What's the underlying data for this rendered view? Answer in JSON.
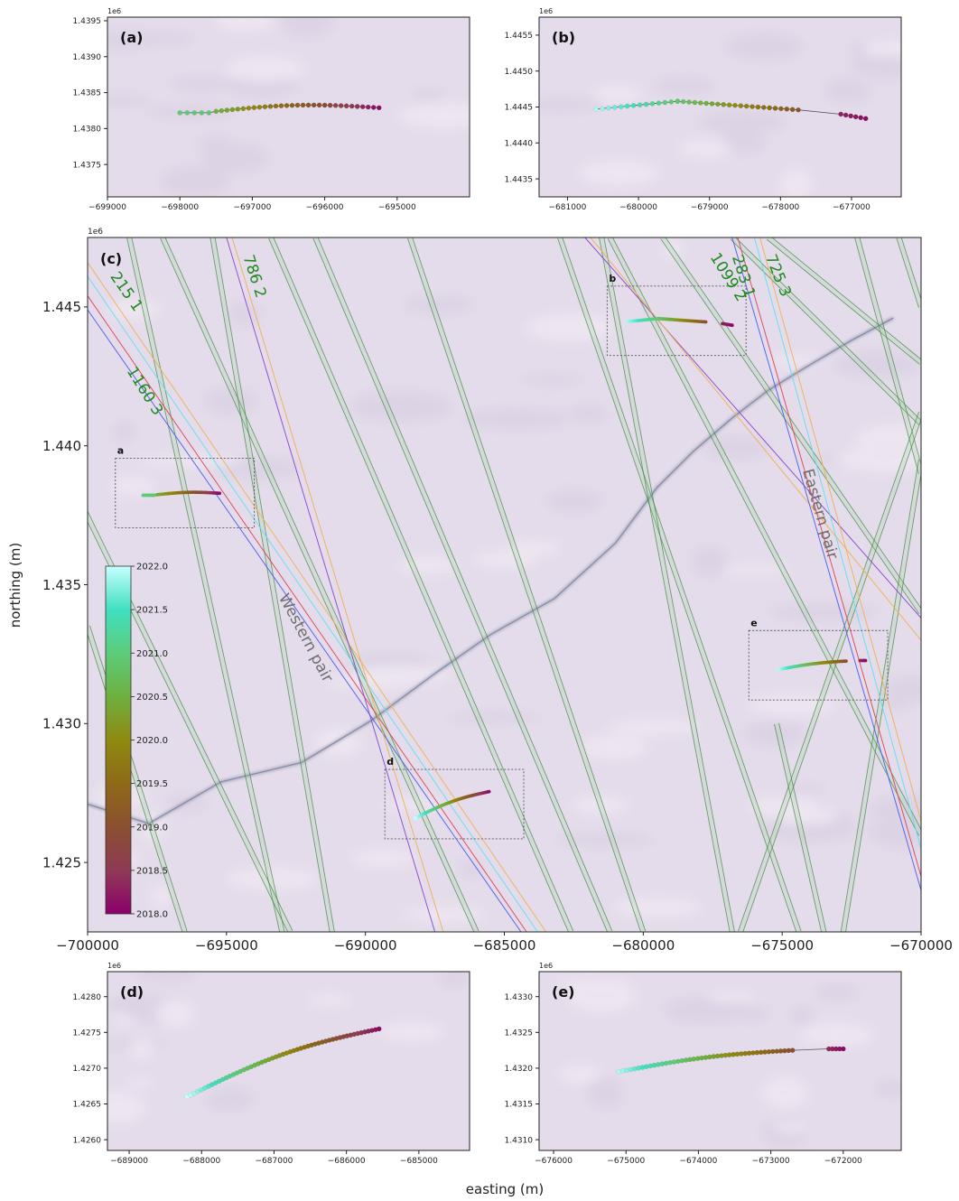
{
  "figure": {
    "xlabel": "easting (m)",
    "ylabel": "northing (m)",
    "colors": {
      "background": "#e4dcea",
      "track_green": "#3a8a3a",
      "track_blue": "#4a5af0",
      "track_red": "#e04050",
      "track_cyan": "#60e0f0",
      "track_orange": "#f0b050",
      "track_purple": "#8844cc",
      "box": "#555555"
    }
  },
  "chart_data": [
    {
      "id": "a",
      "type": "scatter",
      "label": "(a)",
      "offset_text": "1e6",
      "xlim": [
        -699000,
        -694000
      ],
      "ylim": [
        1.43705,
        1.43955
      ],
      "xticks": [
        -699000,
        -698000,
        -697000,
        -696000,
        -695000
      ],
      "xtick_labels": [
        "−699000",
        "−698000",
        "−697000",
        "−696000",
        "−695000"
      ],
      "yticks": [
        1.4375,
        1.438,
        1.4385,
        1.439,
        1.4395
      ],
      "ytick_labels": [
        "1.4375",
        "1.4380",
        "1.4385",
        "1.4390",
        "1.4395"
      ],
      "segments": [
        {
          "x0": -698000,
          "y0": 1.43822,
          "x1": -697600,
          "y1": 1.43822,
          "t0": 2021.0,
          "t1": 2020.9,
          "n": 5
        },
        {
          "x0": -697500,
          "y0": 1.43824,
          "x1": -695250,
          "y1": 1.43829,
          "t0": 2020.5,
          "t1": 2018.1,
          "n": 31,
          "curve": 6e-05
        }
      ]
    },
    {
      "id": "b",
      "type": "scatter",
      "label": "(b)",
      "offset_text": "1e6",
      "xlim": [
        -681400,
        -676300
      ],
      "ylim": [
        1.44325,
        1.44575
      ],
      "xticks": [
        -681000,
        -680000,
        -679000,
        -678000,
        -677000
      ],
      "xtick_labels": [
        "−681000",
        "−680000",
        "−679000",
        "−678000",
        "−677000"
      ],
      "yticks": [
        1.4435,
        1.444,
        1.4445,
        1.445,
        1.4455
      ],
      "ytick_labels": [
        "1.4435",
        "1.4440",
        "1.4445",
        "1.4450",
        "1.4455"
      ],
      "segments": [
        {
          "x0": -680600,
          "y0": 1.44447,
          "x1": -679450,
          "y1": 1.44458,
          "t0": 2021.9,
          "t1": 2020.9,
          "n": 14
        },
        {
          "x0": -679450,
          "y0": 1.44458,
          "x1": -677750,
          "y1": 1.44446,
          "t0": 2020.9,
          "t1": 2019.1,
          "n": 22
        },
        {
          "x0": -677150,
          "y0": 1.4444,
          "x1": -676800,
          "y1": 1.44434,
          "t0": 2018.3,
          "t1": 2018.1,
          "n": 6
        }
      ]
    },
    {
      "id": "c",
      "type": "map",
      "label": "(c)",
      "offset_text": "1e6",
      "xlim": [
        -700000,
        -670000
      ],
      "ylim": [
        1.4225,
        1.4475
      ],
      "xticks": [
        -700000,
        -695000,
        -690000,
        -685000,
        -680000,
        -675000,
        -670000
      ],
      "xtick_labels": [
        "−700000",
        "−695000",
        "−690000",
        "−685000",
        "−680000",
        "−675000",
        "−670000"
      ],
      "yticks": [
        1.425,
        1.43,
        1.435,
        1.44,
        1.445
      ],
      "ytick_labels": [
        "1.425",
        "1.430",
        "1.435",
        "1.440",
        "1.445"
      ],
      "track_labels": [
        {
          "text": "215 1",
          "x": -699200,
          "y": 1.4461,
          "angle": 55
        },
        {
          "text": "1160 3",
          "x": -698600,
          "y": 1.4427,
          "angle": 58
        },
        {
          "text": "786 2",
          "x": -694400,
          "y": 1.4468,
          "angle": 72
        },
        {
          "text": "1099 2",
          "x": -677600,
          "y": 1.4468,
          "angle": 58
        },
        {
          "text": "283 1",
          "x": -676800,
          "y": 1.4468,
          "angle": 72
        },
        {
          "text": "725 3",
          "x": -675600,
          "y": 1.4468,
          "angle": 68
        }
      ],
      "pair_labels": [
        {
          "text": "Western pair",
          "x": -692300,
          "y": 1.433,
          "angle": 62
        },
        {
          "text": "Eastern pair",
          "x": -673800,
          "y": 1.4375,
          "angle": 74
        }
      ],
      "boxes": [
        {
          "label": "a",
          "x0": -699000,
          "x1": -694000,
          "y0": 1.43705,
          "y1": 1.43955
        },
        {
          "label": "b",
          "x0": -681300,
          "x1": -676300,
          "y0": 1.44325,
          "y1": 1.44575
        },
        {
          "label": "d",
          "x0": -689300,
          "x1": -684300,
          "y0": 1.42585,
          "y1": 1.42835
        },
        {
          "label": "e",
          "x0": -676200,
          "x1": -671200,
          "y0": 1.43085,
          "y1": 1.43335
        }
      ],
      "tracks": [
        {
          "x1": -698500,
          "y1": 1.4475,
          "x2": -693000,
          "y2": 1.4225,
          "color": "green"
        },
        {
          "x1": -701000,
          "y1": 1.4395,
          "x2": -692700,
          "y2": 1.4225,
          "color": "green"
        },
        {
          "x1": -700000,
          "y1": 1.4335,
          "x2": -696500,
          "y2": 1.4225,
          "color": "green"
        },
        {
          "x1": -697300,
          "y1": 1.4475,
          "x2": -686000,
          "y2": 1.4225,
          "color": "green"
        },
        {
          "x1": -695500,
          "y1": 1.4475,
          "x2": -691200,
          "y2": 1.4225,
          "color": "green"
        },
        {
          "x1": -691800,
          "y1": 1.4475,
          "x2": -681200,
          "y2": 1.4225,
          "color": "green"
        },
        {
          "x1": -693400,
          "y1": 1.4475,
          "x2": -682600,
          "y2": 1.4225,
          "color": "green"
        },
        {
          "x1": -688400,
          "y1": 1.4475,
          "x2": -680000,
          "y2": 1.4225,
          "color": "green"
        },
        {
          "x1": -683000,
          "y1": 1.4475,
          "x2": -674400,
          "y2": 1.4225,
          "color": "green"
        },
        {
          "x1": -681500,
          "y1": 1.4475,
          "x2": -676800,
          "y2": 1.4225,
          "color": "green"
        },
        {
          "x1": -681200,
          "y1": 1.4475,
          "x2": -670000,
          "y2": 1.426,
          "color": "green"
        },
        {
          "x1": -679300,
          "y1": 1.4475,
          "x2": -670000,
          "y2": 1.434,
          "color": "green"
        },
        {
          "x1": -676800,
          "y1": 1.4475,
          "x2": -670000,
          "y2": 1.4408,
          "color": "green"
        },
        {
          "x1": -675500,
          "y1": 1.4475,
          "x2": -670000,
          "y2": 1.443,
          "color": "green"
        },
        {
          "x1": -672300,
          "y1": 1.4475,
          "x2": -670000,
          "y2": 1.439,
          "color": "green"
        },
        {
          "x1": -670800,
          "y1": 1.4475,
          "x2": -670000,
          "y2": 1.445,
          "color": "green"
        },
        {
          "x1": -670000,
          "y1": 1.4412,
          "x2": -676500,
          "y2": 1.4225,
          "color": "green"
        },
        {
          "x1": -670000,
          "y1": 1.4395,
          "x2": -672800,
          "y2": 1.4225,
          "color": "green"
        },
        {
          "x1": -675200,
          "y1": 1.43,
          "x2": -673500,
          "y2": 1.4225,
          "color": "green"
        },
        {
          "x1": -700000,
          "y1": 1.4449,
          "x2": -684400,
          "y2": 1.4225,
          "color": "blue"
        },
        {
          "x1": -700000,
          "y1": 1.4454,
          "x2": -684200,
          "y2": 1.4225,
          "color": "red"
        },
        {
          "x1": -700000,
          "y1": 1.4461,
          "x2": -683800,
          "y2": 1.4225,
          "color": "cyan"
        },
        {
          "x1": -700000,
          "y1": 1.4466,
          "x2": -683500,
          "y2": 1.4225,
          "color": "orange"
        },
        {
          "x1": -695000,
          "y1": 1.4475,
          "x2": -687500,
          "y2": 1.4225,
          "color": "purple"
        },
        {
          "x1": -694800,
          "y1": 1.4475,
          "x2": -687200,
          "y2": 1.4225,
          "color": "orange"
        },
        {
          "x1": -682100,
          "y1": 1.4475,
          "x2": -670000,
          "y2": 1.4338,
          "color": "purple"
        },
        {
          "x1": -681900,
          "y1": 1.4475,
          "x2": -670000,
          "y2": 1.433,
          "color": "orange"
        },
        {
          "x1": -676800,
          "y1": 1.4475,
          "x2": -670000,
          "y2": 1.424,
          "color": "blue"
        },
        {
          "x1": -676600,
          "y1": 1.4475,
          "x2": -670000,
          "y2": 1.4245,
          "color": "red"
        },
        {
          "x1": -676000,
          "y1": 1.4475,
          "x2": -670000,
          "y2": 1.4255,
          "color": "cyan"
        },
        {
          "x1": -675800,
          "y1": 1.4475,
          "x2": -670000,
          "y2": 1.4265,
          "color": "orange"
        }
      ],
      "segments": [
        {
          "x0": -698000,
          "y0": 1.43822,
          "x1": -697600,
          "y1": 1.43822,
          "t0": 2021.0,
          "t1": 2020.9,
          "n": 8
        },
        {
          "x0": -697500,
          "y0": 1.43824,
          "x1": -695250,
          "y1": 1.43829,
          "t0": 2020.5,
          "t1": 2018.1,
          "n": 40,
          "curve": 6e-05
        },
        {
          "x0": -680600,
          "y0": 1.44447,
          "x1": -679450,
          "y1": 1.44458,
          "t0": 2021.9,
          "t1": 2020.9,
          "n": 20
        },
        {
          "x0": -679450,
          "y0": 1.44458,
          "x1": -677750,
          "y1": 1.44446,
          "t0": 2020.9,
          "t1": 2019.1,
          "n": 30
        },
        {
          "x0": -677150,
          "y0": 1.4444,
          "x1": -676800,
          "y1": 1.44434,
          "t0": 2018.3,
          "t1": 2018.1,
          "n": 8
        },
        {
          "x0": -688200,
          "y0": 1.4266,
          "x1": -685550,
          "y1": 1.42755,
          "t0": 2022.0,
          "t1": 2018.1,
          "n": 50,
          "curve": 0.00012
        },
        {
          "x0": -675100,
          "y0": 1.43195,
          "x1": -672700,
          "y1": 1.43225,
          "t0": 2021.9,
          "t1": 2019.0,
          "n": 40,
          "curve": 5e-05
        },
        {
          "x0": -672200,
          "y0": 1.43227,
          "x1": -672000,
          "y1": 1.43227,
          "t0": 2018.4,
          "t1": 2018.1,
          "n": 5
        }
      ],
      "colorbar": {
        "min": 2018.0,
        "max": 2022.0,
        "ticks": [
          2018.0,
          2018.5,
          2019.0,
          2019.5,
          2020.0,
          2020.5,
          2021.0,
          2021.5,
          2022.0
        ],
        "tick_labels": [
          "2018.0",
          "2018.5",
          "2019.0",
          "2019.5",
          "2020.0",
          "2020.5",
          "2021.0",
          "2021.5",
          "2022.0"
        ],
        "colormap": [
          "#8b006b",
          "#8f3a55",
          "#8a5030",
          "#8e6a18",
          "#8f8a10",
          "#6fb040",
          "#5ccc7a",
          "#40e0c0",
          "#c8ffff"
        ]
      }
    },
    {
      "id": "d",
      "type": "scatter",
      "label": "(d)",
      "offset_text": "1e6",
      "xlim": [
        -689300,
        -684300
      ],
      "ylim": [
        1.42585,
        1.42835
      ],
      "xticks": [
        -689000,
        -688000,
        -687000,
        -686000,
        -685000
      ],
      "xtick_labels": [
        "−689000",
        "−688000",
        "−687000",
        "−686000",
        "−685000"
      ],
      "yticks": [
        1.426,
        1.4265,
        1.427,
        1.4275,
        1.428
      ],
      "ytick_labels": [
        "1.4260",
        "1.4265",
        "1.4270",
        "1.4275",
        "1.4280"
      ],
      "segments": [
        {
          "x0": -688200,
          "y0": 1.4266,
          "x1": -685550,
          "y1": 1.42755,
          "t0": 2022.0,
          "t1": 2018.1,
          "n": 55,
          "curve": 0.00012
        }
      ]
    },
    {
      "id": "e",
      "type": "scatter",
      "label": "(e)",
      "offset_text": "1e6",
      "xlim": [
        -676200,
        -671200
      ],
      "ylim": [
        1.43085,
        1.43335
      ],
      "xticks": [
        -676000,
        -675000,
        -674000,
        -673000,
        -672000
      ],
      "xtick_labels": [
        "−676000",
        "−675000",
        "−674000",
        "−673000",
        "−672000"
      ],
      "yticks": [
        1.431,
        1.4315,
        1.432,
        1.4325,
        1.433
      ],
      "ytick_labels": [
        "1.4310",
        "1.4315",
        "1.4320",
        "1.4325",
        "1.4330"
      ],
      "segments": [
        {
          "x0": -675100,
          "y0": 1.43195,
          "x1": -672700,
          "y1": 1.43225,
          "t0": 2021.9,
          "t1": 2019.0,
          "n": 45,
          "curve": 5e-05
        },
        {
          "x0": -672200,
          "y0": 1.43227,
          "x1": -672000,
          "y1": 1.43227,
          "t0": 2018.4,
          "t1": 2018.1,
          "n": 5
        }
      ]
    }
  ]
}
